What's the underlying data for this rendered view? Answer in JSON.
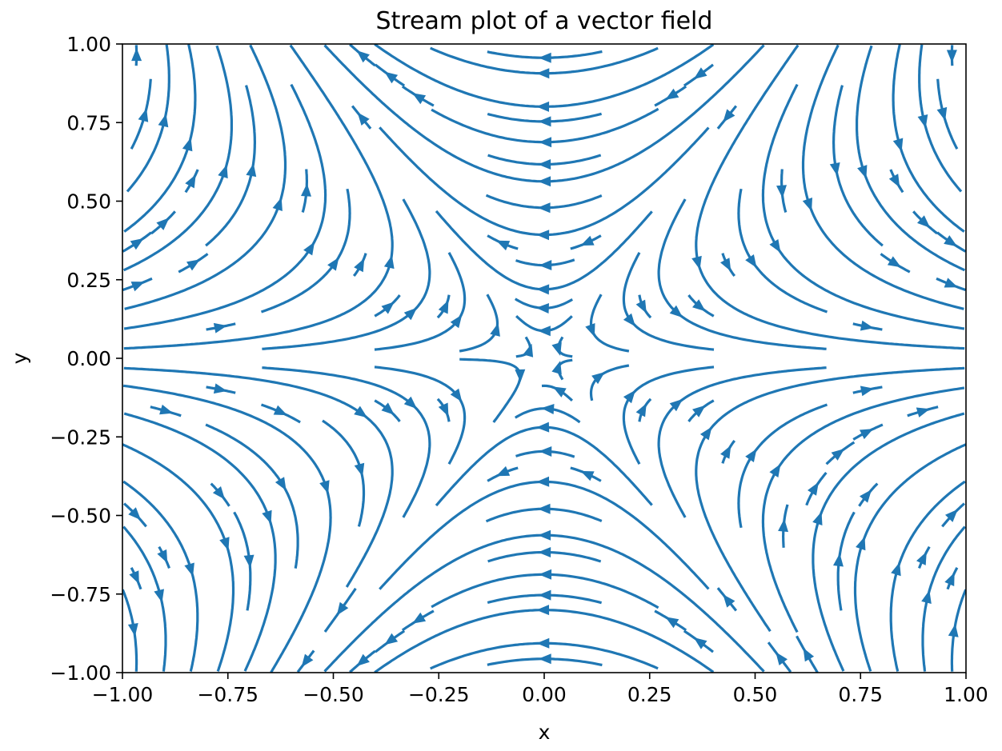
{
  "chart_data": {
    "type": "streamplot",
    "title": "Stream plot of a vector field",
    "xlabel": "x",
    "ylabel": "y",
    "xlim": [
      -1.0,
      1.0
    ],
    "ylim": [
      -1.0,
      1.0
    ],
    "xticks": [
      -1.0,
      -0.75,
      -0.5,
      -0.25,
      0.0,
      0.25,
      0.5,
      0.75,
      1.0
    ],
    "yticks": [
      -1.0,
      -0.75,
      -0.5,
      -0.25,
      0.0,
      0.25,
      0.5,
      0.75,
      1.0
    ],
    "xtick_labels": [
      "−1.00",
      "−0.75",
      "−0.50",
      "−0.25",
      "0.00",
      "0.25",
      "0.50",
      "0.75",
      "1.00"
    ],
    "ytick_labels": [
      "−1.00",
      "−0.75",
      "−0.50",
      "−0.25",
      "0.00",
      "0.25",
      "0.50",
      "0.75",
      "1.00"
    ],
    "field": {
      "u": "x^2 - y^2",
      "v": "-2*x*y"
    },
    "grid": false,
    "legend": false,
    "line_color": "#1f77b4"
  }
}
